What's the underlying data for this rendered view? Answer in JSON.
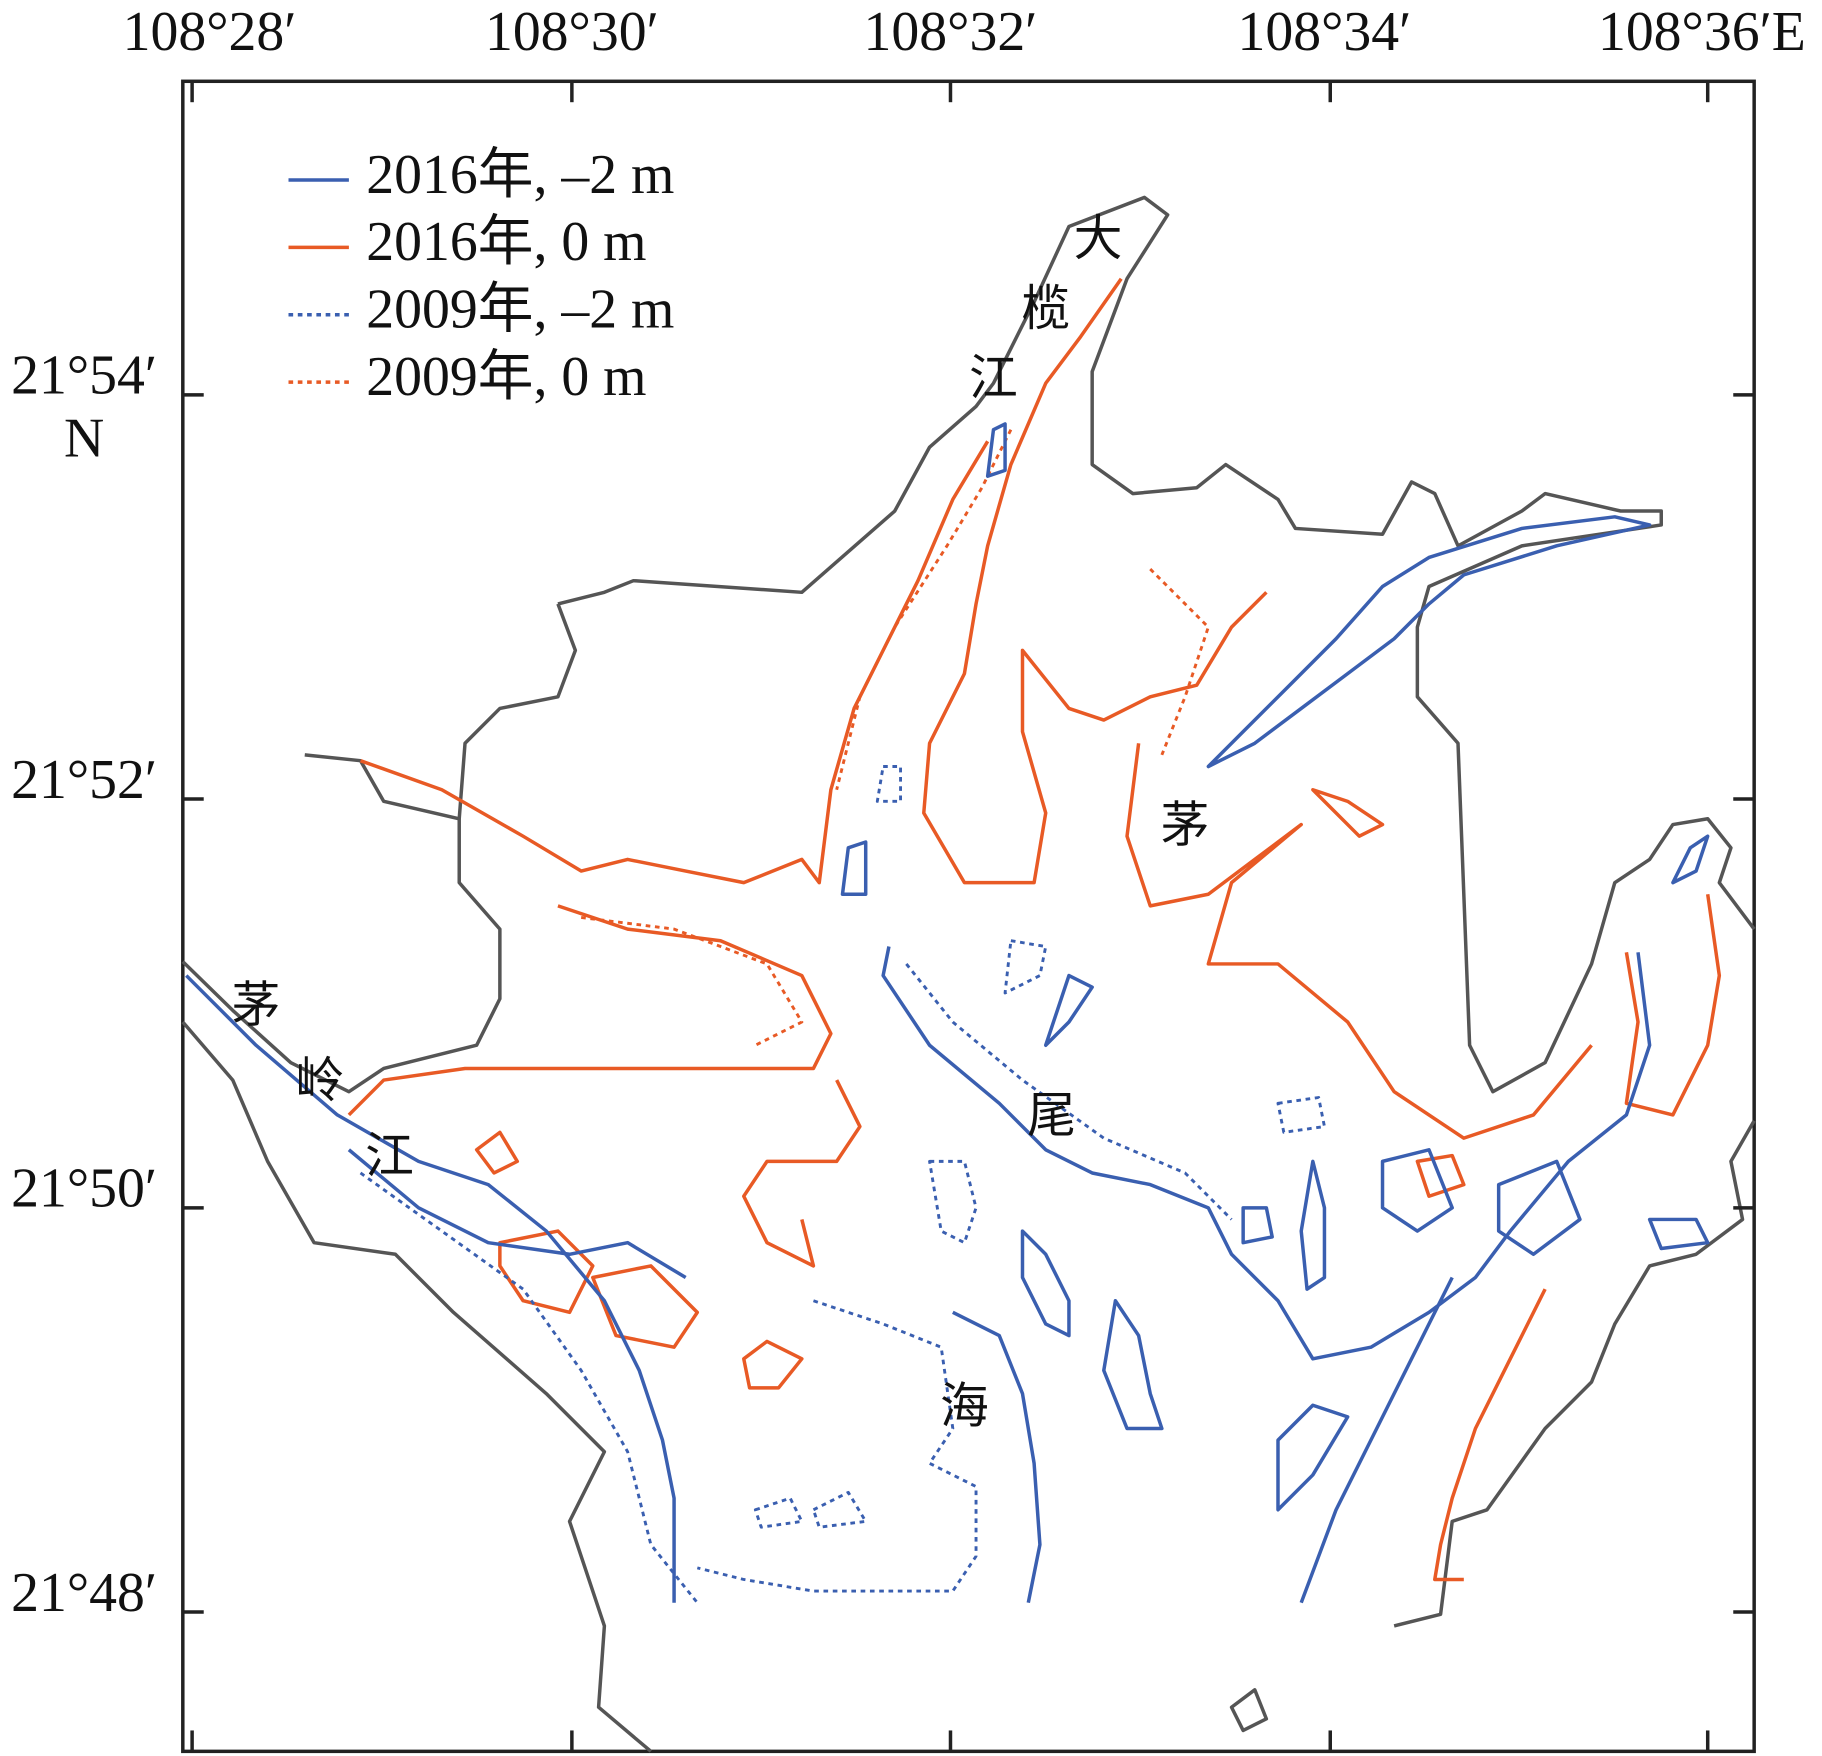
{
  "map": {
    "lon_labels": [
      "108°28′",
      "108°30′",
      "108°32′",
      "108°34′",
      "108°36′E"
    ],
    "lat_labels": [
      "21°54′",
      "21°52′",
      "21°50′",
      "21°48′"
    ],
    "lat_hemisphere": "N",
    "legend": [
      {
        "name": "2016年, –2 m",
        "color": "#3a5fb0",
        "style": "solid"
      },
      {
        "name": "2016年, 0 m",
        "color": "#e85a25",
        "style": "solid"
      },
      {
        "name": "2009年, –2 m",
        "color": "#3a5fb0",
        "style": "dotted"
      },
      {
        "name": "2009年, 0 m",
        "color": "#e85a25",
        "style": "dotted"
      }
    ],
    "places": [
      {
        "chars": [
          "大",
          "榄",
          "江"
        ]
      },
      {
        "chars": [
          "茅",
          "尾",
          "海"
        ]
      },
      {
        "chars": [
          "茅",
          "岭",
          "江"
        ]
      }
    ]
  }
}
